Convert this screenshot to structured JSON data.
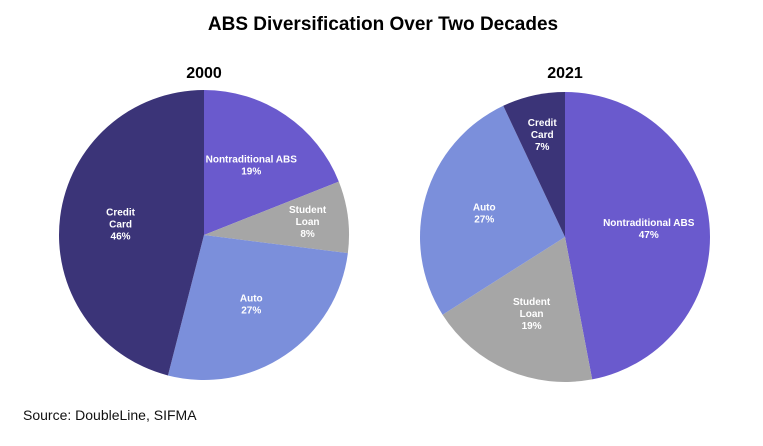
{
  "chart_data": [
    {
      "type": "pie",
      "title": "2000",
      "slices": [
        {
          "label": "Nontraditional ABS",
          "value": 19,
          "display": "19%",
          "color": "#6a5acd"
        },
        {
          "label": "Student Loan",
          "value": 8,
          "display": "8%",
          "color": "#a6a6a6"
        },
        {
          "label": "Auto",
          "value": 27,
          "display": "27%",
          "color": "#7b8fdb"
        },
        {
          "label": "Credit Card",
          "value": 46,
          "display": "46%",
          "color": "#3b3478"
        }
      ]
    },
    {
      "type": "pie",
      "title": "2021",
      "slices": [
        {
          "label": "Nontraditional ABS",
          "value": 47,
          "display": "47%",
          "color": "#6a5acd"
        },
        {
          "label": "Student Loan",
          "value": 19,
          "display": "19%",
          "color": "#a6a6a6"
        },
        {
          "label": "Auto",
          "value": 27,
          "display": "27%",
          "color": "#7b8fdb"
        },
        {
          "label": "Credit Card",
          "value": 7,
          "display": "7%",
          "color": "#3b3478"
        }
      ]
    }
  ],
  "page": {
    "title": "ABS Diversification Over Two Decades",
    "source": "Source: DoubleLine, SIFMA"
  }
}
